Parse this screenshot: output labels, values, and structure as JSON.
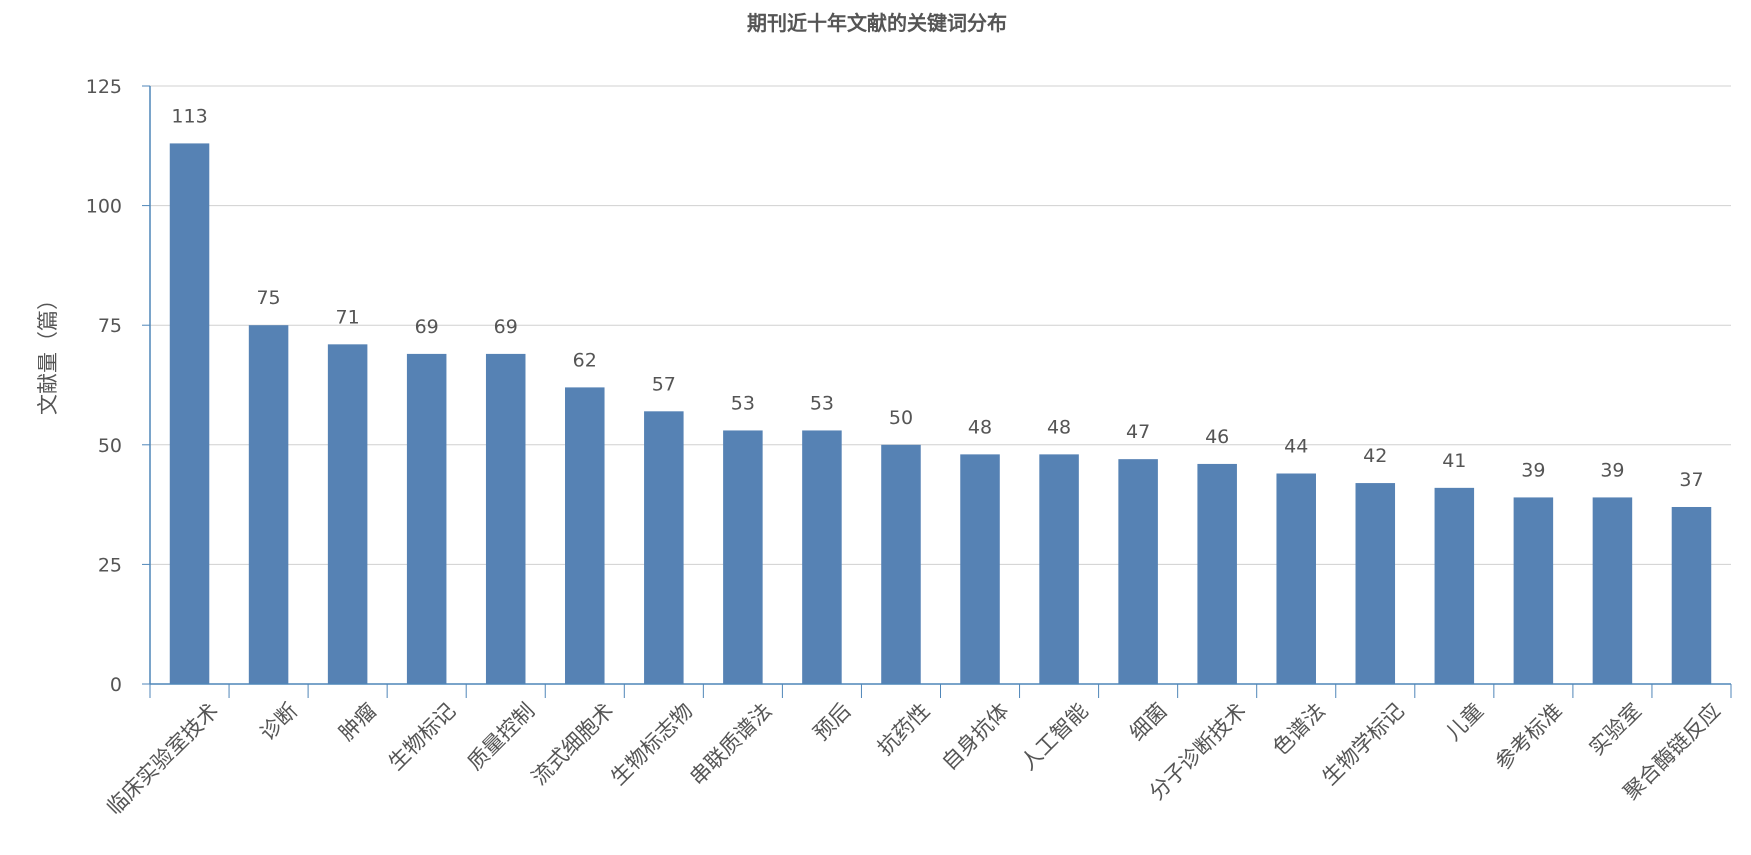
{
  "chart_data": {
    "type": "bar",
    "title": "期刊近十年文献的关键词分布",
    "xlabel": "",
    "ylabel": "文献量（篇）",
    "ylim": [
      0,
      125
    ],
    "yticks": [
      0,
      25,
      50,
      75,
      100,
      125
    ],
    "grid": true,
    "legend": "none",
    "categories": [
      "临床实验室技术",
      "诊断",
      "肿瘤",
      "生物标记",
      "质量控制",
      "流式细胞术",
      "生物标志物",
      "串联质谱法",
      "预后",
      "抗药性",
      "自身抗体",
      "人工智能",
      "细菌",
      "分子诊断技术",
      "色谱法",
      "生物学标记",
      "儿童",
      "参考标准",
      "实验室",
      "聚合酶链反应"
    ],
    "values": [
      113,
      75,
      71,
      69,
      69,
      62,
      57,
      53,
      53,
      50,
      48,
      48,
      47,
      46,
      44,
      42,
      41,
      39,
      39,
      37
    ],
    "bar_color": "#5682b4",
    "grid_color": "#d0d0d0",
    "axis_color": "#4f86b8"
  }
}
